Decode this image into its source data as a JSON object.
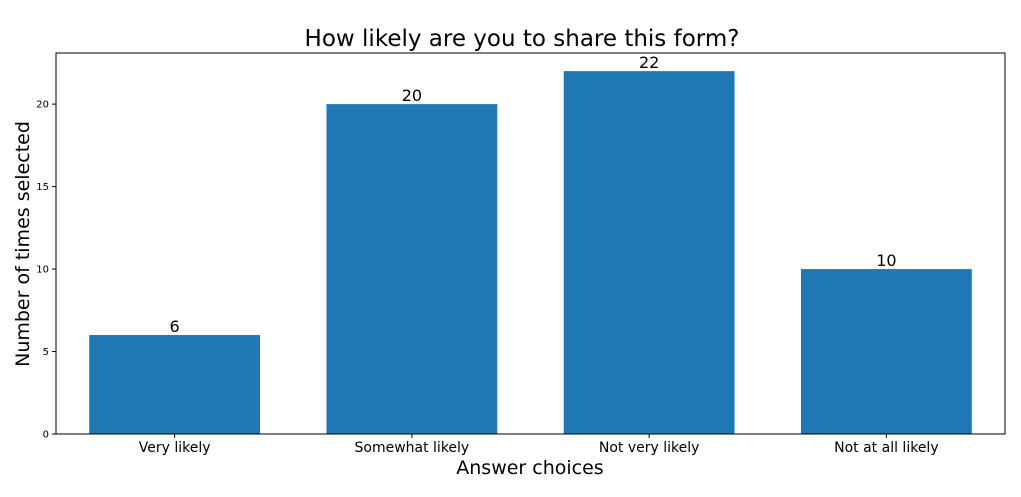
{
  "chart_data": {
    "type": "bar",
    "title": "How likely are you to share this form?",
    "xlabel": "Answer choices",
    "ylabel": "Number of times selected",
    "categories": [
      "Very likely",
      "Somewhat likely",
      "Not very likely",
      "Not at all likely"
    ],
    "values": [
      6,
      20,
      22,
      10
    ],
    "value_labels": [
      "6",
      "20",
      "22",
      "10"
    ],
    "ylim": [
      0,
      23.1
    ],
    "yticks": [
      0,
      5,
      10,
      15,
      20
    ],
    "ytick_labels": [
      "0",
      "5",
      "10",
      "15",
      "20"
    ],
    "bar_color": "#1f77b4",
    "grid": false,
    "legend": "none"
  }
}
